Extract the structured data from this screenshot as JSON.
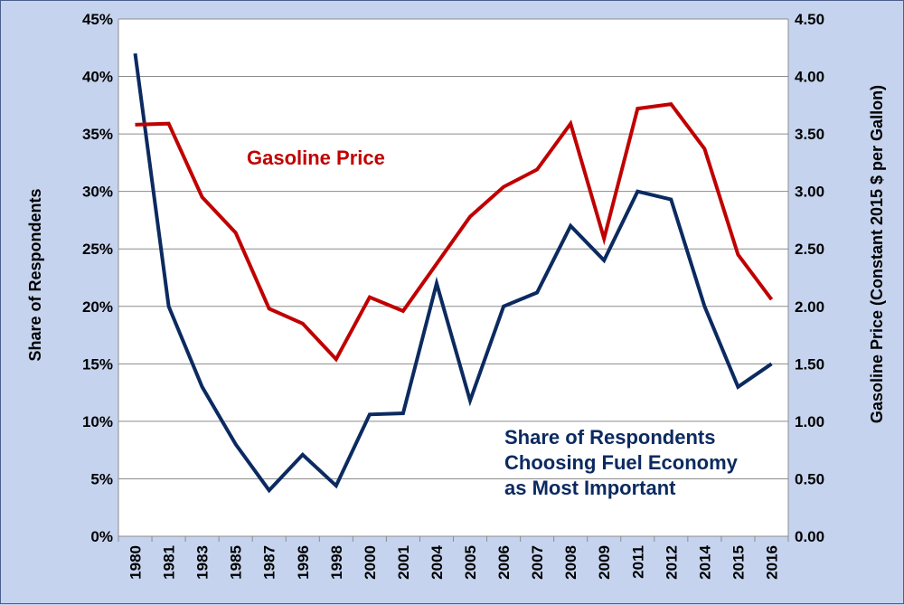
{
  "chart_data": {
    "type": "line",
    "categories": [
      "1980",
      "1981",
      "1983",
      "1985",
      "1987",
      "1996",
      "1998",
      "2000",
      "2001",
      "2004",
      "2005",
      "2006",
      "2007",
      "2008",
      "2009",
      "2011",
      "2012",
      "2014",
      "2015",
      "2016"
    ],
    "series": [
      {
        "axis": "left",
        "color": "#0b2a60",
        "values": [
          42,
          20,
          13,
          8,
          4,
          7.1,
          4.4,
          10.6,
          10.7,
          22,
          11.8,
          20,
          21.2,
          27,
          24,
          30,
          29.3,
          20,
          13,
          15
        ]
      },
      {
        "axis": "right",
        "color": "#c00000",
        "values": [
          3.58,
          3.59,
          2.95,
          2.64,
          1.98,
          1.85,
          1.54,
          2.08,
          1.96,
          2.37,
          2.78,
          3.04,
          3.19,
          3.59,
          2.59,
          3.72,
          3.76,
          3.37,
          2.45,
          2.06
        ]
      }
    ],
    "ylabel": "Share of Respondents",
    "y2label": "Gasoline Price (Constant 2015 $ per Gallon)",
    "ylim": [
      0,
      45
    ],
    "y2lim": [
      0,
      4.5
    ],
    "yticks": [
      "0%",
      "5%",
      "10%",
      "15%",
      "20%",
      "25%",
      "30%",
      "35%",
      "40%",
      "45%"
    ],
    "y2ticks": [
      "0.00",
      "0.50",
      "1.00",
      "1.50",
      "2.00",
      "2.50",
      "3.00",
      "3.50",
      "4.00",
      "4.50"
    ],
    "annotations": {
      "gas": "Gasoline Price",
      "share_lines": [
        "Share of Respondents",
        "Choosing Fuel Economy",
        "as Most Important"
      ]
    },
    "grid": true,
    "legend": "none",
    "plot_background": "#ffffff",
    "page_background": "#c5d3ee"
  }
}
